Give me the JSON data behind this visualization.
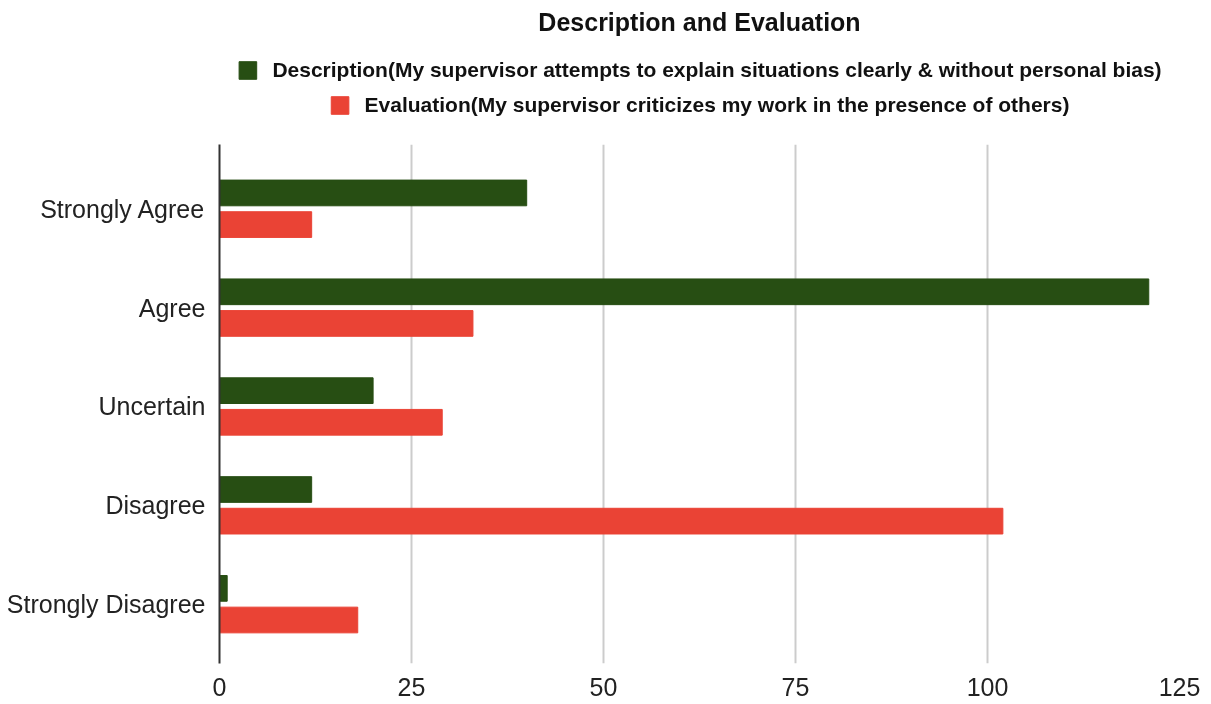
{
  "chart_data": {
    "type": "bar",
    "orientation": "horizontal",
    "title": "Description and Evaluation",
    "categories": [
      "Strongly Agree",
      "Agree",
      "Uncertain",
      "Disagree",
      "Strongly Disagree"
    ],
    "series": [
      {
        "name": "Description(My supervisor attempts to explain situations clearly & without personal bias)",
        "color": "#274e13",
        "values": [
          40,
          121,
          20,
          12,
          1
        ]
      },
      {
        "name": "Evaluation(My supervisor criticizes my work in the presence of others)",
        "color": "#ea4335",
        "values": [
          12,
          33,
          29,
          102,
          18
        ]
      }
    ],
    "xlim": [
      0,
      125
    ],
    "xticks": [
      0,
      25,
      50,
      75,
      100,
      125
    ],
    "grid": "x",
    "legend": "top"
  }
}
